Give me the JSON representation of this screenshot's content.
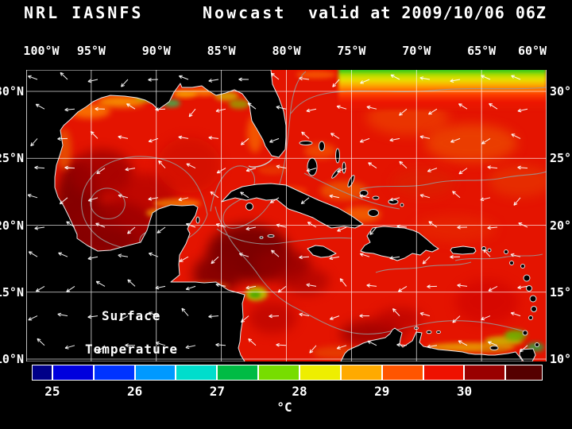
{
  "title": {
    "product": "NRL IASNFS",
    "mode": "Nowcast",
    "valid": "valid at 2009/10/06 06Z"
  },
  "axes": {
    "longitude": [
      "100°W",
      "95°W",
      "90°W",
      "85°W",
      "80°W",
      "75°W",
      "70°W",
      "65°W",
      "60°W"
    ],
    "latitude": [
      "30°N",
      "25°N",
      "20°N",
      "15°N",
      "10°N"
    ]
  },
  "map_overlay": {
    "line1": "Surface",
    "line2": "Temperature"
  },
  "colorbar": {
    "unit": "°C",
    "min": 24.75,
    "max": 30.95,
    "ticks": [
      {
        "label": "25",
        "value": 25
      },
      {
        "label": "26",
        "value": 26
      },
      {
        "label": "27",
        "value": 27
      },
      {
        "label": "28",
        "value": 28
      },
      {
        "label": "29",
        "value": 29
      },
      {
        "label": "30",
        "value": 30
      }
    ],
    "cells": [
      {
        "from": 24.75,
        "to": 25.0,
        "color": "#000088"
      },
      {
        "from": 25.0,
        "to": 25.5,
        "color": "#0000dd"
      },
      {
        "from": 25.5,
        "to": 26.0,
        "color": "#0033ff"
      },
      {
        "from": 26.0,
        "to": 26.5,
        "color": "#0099ff"
      },
      {
        "from": 26.5,
        "to": 27.0,
        "color": "#00ddcc"
      },
      {
        "from": 27.0,
        "to": 27.5,
        "color": "#00bb44"
      },
      {
        "from": 27.5,
        "to": 28.0,
        "color": "#77dd00"
      },
      {
        "from": 28.0,
        "to": 28.5,
        "color": "#eeee00"
      },
      {
        "from": 28.5,
        "to": 29.0,
        "color": "#ffaa00"
      },
      {
        "from": 29.0,
        "to": 29.5,
        "color": "#ff5500"
      },
      {
        "from": 29.5,
        "to": 30.0,
        "color": "#ee1100"
      },
      {
        "from": 30.0,
        "to": 30.5,
        "color": "#990000"
      },
      {
        "from": 30.5,
        "to": 30.95,
        "color": "#550000"
      }
    ]
  },
  "colors": {
    "background": "#000000",
    "text": "#ffffff",
    "ocean_base": "#e41400",
    "land": "#000000",
    "coastline": "#e8e8e8",
    "grid": "#ffffff",
    "contour": "#999999",
    "vector": "#ffffff"
  }
}
